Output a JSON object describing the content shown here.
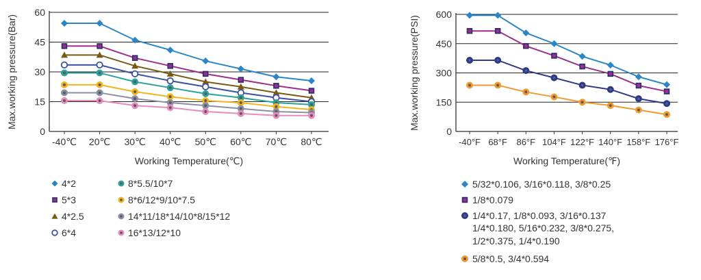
{
  "chart_data": [
    {
      "type": "line",
      "ylabel": "Max.working pressure(Bar)",
      "xlabel": "Working Temperature(℃)",
      "categories": [
        "-40℃",
        "20℃",
        "30℃",
        "40℃",
        "50℃",
        "60℃",
        "70℃",
        "80℃"
      ],
      "yticks": [
        0,
        15,
        30,
        45,
        60
      ],
      "ylim": [
        0,
        60
      ],
      "grid": "horizontal",
      "legend_position": "bottom",
      "series": [
        {
          "name": "4*2",
          "marker": "diamond",
          "color": "#2b86c8",
          "values": [
            54.5,
            54.5,
            46,
            41,
            35.5,
            31.5,
            27.5,
            25.5
          ]
        },
        {
          "name": "5*3",
          "marker": "square",
          "color": "#9b2f8e",
          "values": [
            43,
            43,
            37,
            33,
            29,
            26,
            23,
            20.5
          ]
        },
        {
          "name": "4*2.5",
          "marker": "triangle",
          "color": "#7a5a12",
          "values": [
            38.5,
            38.5,
            33,
            29,
            25,
            22.5,
            19.5,
            17
          ]
        },
        {
          "name": "6*4",
          "marker": "circle",
          "color": "#3d51a3",
          "values": [
            33.5,
            33.5,
            29,
            25.5,
            22.5,
            19.5,
            17,
            15
          ]
        },
        {
          "name": "8*5.5/10*7",
          "marker": "circle-dot",
          "color": "#2aa39a",
          "values": [
            29.5,
            29.5,
            25,
            22,
            19,
            17,
            14.5,
            13.5
          ]
        },
        {
          "name": "8*6/12*9/10*7.5",
          "marker": "circle-dot",
          "color": "#f2b51d",
          "values": [
            23.5,
            23.5,
            20,
            17.5,
            15.5,
            14.5,
            12.5,
            11
          ]
        },
        {
          "name": "14*11/18*14/10*8/15*12",
          "marker": "circle-dot",
          "color": "#8a8fa6",
          "values": [
            19.5,
            19.5,
            16.5,
            14.5,
            13,
            11.5,
            10,
            9.5
          ]
        },
        {
          "name": "16*13/12*10",
          "marker": "circle-dot",
          "color": "#e78ac0",
          "values": [
            15.5,
            15.5,
            13,
            12,
            10,
            9,
            8,
            8
          ]
        }
      ]
    },
    {
      "type": "line",
      "ylabel": "Max.working pressure(PSI)",
      "xlabel": "Working Temperature(℉)",
      "categories": [
        "-40°F",
        "68°F",
        "86°F",
        "104°F",
        "122°F",
        "140°F",
        "158°F",
        "176°F"
      ],
      "yticks": [
        0,
        150,
        300,
        450,
        600
      ],
      "ylim": [
        0,
        600
      ],
      "grid": "horizontal",
      "legend_position": "bottom",
      "series": [
        {
          "name": "5/32*0.106, 3/16*0.118, 3/8*0.25",
          "marker": "diamond",
          "color": "#2b86c8",
          "values": [
            595,
            595,
            505,
            450,
            385,
            340,
            280,
            240
          ]
        },
        {
          "name": "1/8*0.079",
          "marker": "square",
          "color": "#9b2f8e",
          "values": [
            515,
            515,
            438,
            388,
            333,
            295,
            235,
            205
          ]
        },
        {
          "name": "1/4*0.17, 1/8*0.093, 3/16*0.137 1/4*0.180, 5/16*0.232, 3/8*0.275, 1/2*0.375, 1/4*0.190",
          "marker": "circle-dark",
          "color": "#2e3a86",
          "values": [
            365,
            365,
            312,
            275,
            237,
            215,
            168,
            143
          ]
        },
        {
          "name": "5/8*0.5, 3/4*0.594",
          "marker": "circle-dot",
          "color": "#f29a2e",
          "values": [
            237,
            237,
            202,
            177,
            150,
            133,
            110,
            87
          ]
        }
      ],
      "legend_lines": [
        [
          "5/32*0.106, 3/16*0.118, 3/8*0.25"
        ],
        [
          "1/8*0.079"
        ],
        [
          "1/4*0.17, 1/8*0.093, 3/16*0.137",
          "1/4*0.180, 5/16*0.232, 3/8*0.275,",
          "1/2*0.375, 1/4*0.190"
        ],
        [
          "5/8*0.5, 3/4*0.594"
        ]
      ]
    }
  ]
}
